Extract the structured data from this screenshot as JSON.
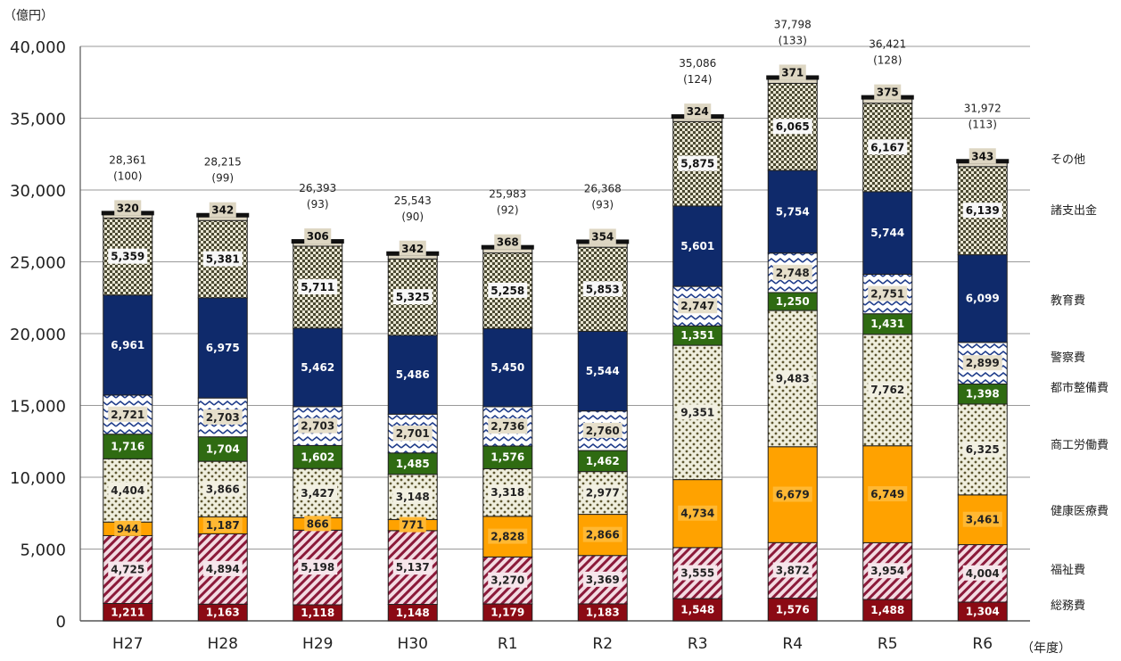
{
  "chart_data": {
    "type": "bar",
    "stacked": true,
    "title": "",
    "ylabel": "（億円）",
    "xlabel": "（年度）",
    "ylim": [
      0,
      40000
    ],
    "yticks": [
      "0",
      "5,000",
      "10,000",
      "15,000",
      "20,000",
      "25,000",
      "30,000",
      "35,000",
      "40,000"
    ],
    "yticks_values": [
      0,
      5000,
      10000,
      15000,
      20000,
      25000,
      30000,
      35000,
      40000
    ],
    "grid": true,
    "legend_position": "right",
    "categories": [
      "H27",
      "H28",
      "H29",
      "H30",
      "R1",
      "R2",
      "R3",
      "R4",
      "R5",
      "R6"
    ],
    "series": [
      {
        "name": "総務費",
        "color": "#8b0a14",
        "values": [
          1211,
          1163,
          1118,
          1148,
          1179,
          1183,
          1548,
          1576,
          1488,
          1304
        ],
        "labels": [
          "1,211",
          "1,163",
          "1,118",
          "1,148",
          "1,179",
          "1,183",
          "1,548",
          "1,576",
          "1,488",
          "1,304"
        ]
      },
      {
        "name": "福祉費",
        "color": "#f5dde4",
        "values": [
          4725,
          4894,
          5198,
          5137,
          3270,
          3369,
          3555,
          3872,
          3954,
          4004
        ],
        "labels": [
          "4,725",
          "4,894",
          "5,198",
          "5,137",
          "3,270",
          "3,369",
          "3,555",
          "3,872",
          "3,954",
          "4,004"
        ]
      },
      {
        "name": "健康医療費",
        "color": "#ffa200",
        "values": [
          944,
          1187,
          866,
          771,
          2828,
          2866,
          4734,
          6679,
          6749,
          3461
        ],
        "labels": [
          "944",
          "1,187",
          "866",
          "771",
          "2,828",
          "2,866",
          "4,734",
          "6,679",
          "6,749",
          "3,461"
        ]
      },
      {
        "name": "商工労働費",
        "color": "#efeedd",
        "values": [
          4404,
          3866,
          3427,
          3148,
          3318,
          2977,
          9351,
          9483,
          7762,
          6325
        ],
        "labels": [
          "4,404",
          "3,866",
          "3,427",
          "3,148",
          "3,318",
          "2,977",
          "9,351",
          "9,483",
          "7,762",
          "6,325"
        ]
      },
      {
        "name": "都市整備費",
        "color": "#2f6b12",
        "values": [
          1716,
          1704,
          1602,
          1485,
          1576,
          1462,
          1351,
          1250,
          1431,
          1398
        ],
        "labels": [
          "1,716",
          "1,704",
          "1,602",
          "1,485",
          "1,576",
          "1,462",
          "1,351",
          "1,250",
          "1,431",
          "1,398"
        ]
      },
      {
        "name": "警察費",
        "color": "#e6e0cc",
        "values": [
          2721,
          2703,
          2703,
          2701,
          2736,
          2760,
          2747,
          2748,
          2751,
          2899
        ],
        "labels": [
          "2,721",
          "2,703",
          "2,703",
          "2,701",
          "2,736",
          "2,760",
          "2,747",
          "2,748",
          "2,751",
          "2,899"
        ]
      },
      {
        "name": "教育費",
        "color": "#0f2a6b",
        "values": [
          6961,
          6975,
          5462,
          5486,
          5450,
          5544,
          5601,
          5754,
          5744,
          6099
        ],
        "labels": [
          "6,961",
          "6,975",
          "5,462",
          "5,486",
          "5,450",
          "5,544",
          "5,601",
          "5,754",
          "5,744",
          "6,099"
        ]
      },
      {
        "name": "諸支出金",
        "color": "#f6f6f6",
        "values": [
          5359,
          5381,
          5711,
          5325,
          5258,
          5853,
          5875,
          6065,
          6167,
          6139
        ],
        "labels": [
          "5,359",
          "5,381",
          "5,711",
          "5,325",
          "5,258",
          "5,853",
          "5,875",
          "6,065",
          "6,167",
          "6,139"
        ]
      },
      {
        "name": "その他",
        "color": "#ddd6c2",
        "values": [
          320,
          342,
          306,
          342,
          368,
          354,
          324,
          371,
          375,
          343
        ],
        "labels": [
          "320",
          "342",
          "306",
          "342",
          "368",
          "354",
          "324",
          "371",
          "375",
          "343"
        ]
      }
    ],
    "totals": [
      28361,
      28215,
      26393,
      25543,
      25983,
      26368,
      35086,
      37798,
      36421,
      31972
    ],
    "total_labels": [
      "28,361",
      "28,215",
      "26,393",
      "25,543",
      "25,983",
      "26,368",
      "35,086",
      "37,798",
      "36,421",
      "31,972"
    ],
    "index_labels": [
      "(100)",
      "(99)",
      "(93)",
      "(90)",
      "(92)",
      "(93)",
      "(124)",
      "(133)",
      "(128)",
      "(113)"
    ],
    "legend_order": [
      "その他",
      "諸支出金",
      "教育費",
      "警察費",
      "都市整備費",
      "商工労働費",
      "健康医療費",
      "福祉費",
      "総務費"
    ]
  }
}
